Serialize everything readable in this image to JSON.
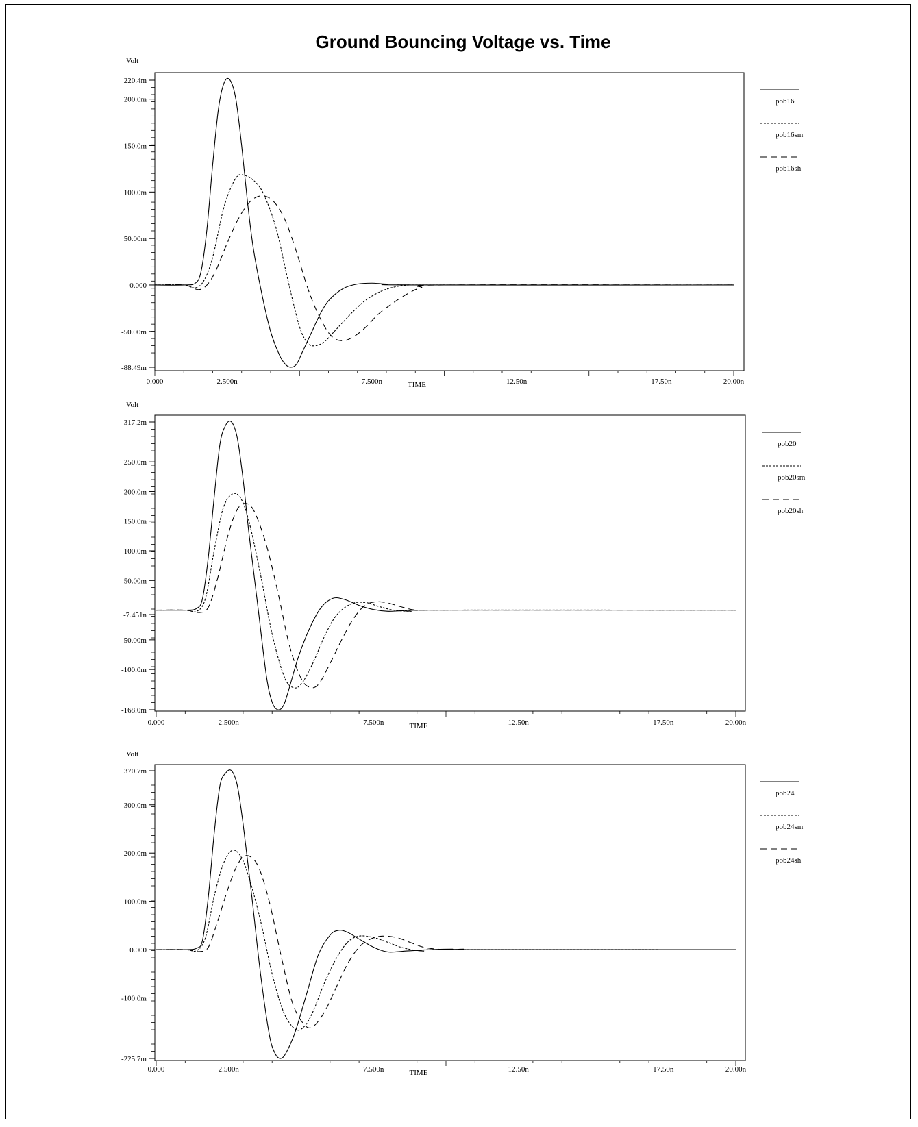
{
  "title": "Ground Bouncing Voltage vs. Time",
  "chart_data": [
    {
      "type": "line",
      "yunit": "Volt",
      "xlabel": "TIME",
      "xlim": [
        0,
        20
      ],
      "ylim": [
        -88.49,
        220.4
      ],
      "x_ticks": [
        "0.000",
        "2.500n",
        "7.500n",
        "12.50n",
        "17.50n",
        "20.00n"
      ],
      "y_ticks": [
        {
          "value": 220.4,
          "label": "220.4m"
        },
        {
          "value": 200,
          "label": "200.0m"
        },
        {
          "value": 150,
          "label": "150.0m"
        },
        {
          "value": 100,
          "label": "100.0m"
        },
        {
          "value": 50,
          "label": "50.00m"
        },
        {
          "value": 0,
          "label": "0.000"
        },
        {
          "value": -50,
          "label": "-50.00m"
        },
        {
          "value": -88.49,
          "label": "-88.49m"
        }
      ],
      "legend_position": "right",
      "series": [
        {
          "name": "pob16",
          "style": "solid",
          "x": [
            0,
            1.0,
            1.4,
            1.6,
            1.8,
            2.0,
            2.2,
            2.4,
            2.6,
            2.8,
            3.0,
            3.2,
            3.4,
            3.7,
            4.0,
            4.3,
            4.5,
            4.7,
            4.9,
            5.1,
            5.4,
            5.7,
            6.0,
            6.5,
            7.0,
            7.5,
            8.0,
            9.0,
            20.0
          ],
          "y": [
            0,
            0,
            2,
            15,
            60,
            130,
            190,
            218,
            220.4,
            200,
            150,
            90,
            40,
            -10,
            -50,
            -75,
            -85,
            -88.49,
            -85,
            -72,
            -52,
            -32,
            -17,
            -4,
            1,
            2,
            1,
            0,
            0
          ]
        },
        {
          "name": "pob16sm",
          "style": "dotted",
          "x": [
            0,
            1.0,
            1.4,
            1.7,
            2.0,
            2.4,
            2.8,
            3.1,
            3.5,
            3.8,
            4.2,
            4.6,
            5.0,
            5.3,
            5.6,
            5.9,
            6.2,
            6.5,
            6.9,
            7.3,
            7.8,
            8.3,
            8.8,
            9.3,
            20.0
          ],
          "y": [
            0,
            0,
            -3,
            5,
            30,
            85,
            115,
            118,
            110,
            95,
            60,
            5,
            -45,
            -63,
            -65,
            -60,
            -50,
            -40,
            -27,
            -16,
            -7,
            -2,
            0,
            0,
            0
          ]
        },
        {
          "name": "pob16sh",
          "style": "dashed",
          "x": [
            0,
            1.0,
            1.5,
            1.8,
            2.1,
            2.5,
            2.9,
            3.3,
            3.7,
            4.1,
            4.5,
            4.9,
            5.3,
            5.7,
            6.1,
            6.5,
            6.9,
            7.3,
            7.7,
            8.2,
            8.7,
            9.2,
            10.0,
            20.0
          ],
          "y": [
            0,
            0,
            -5,
            0,
            15,
            45,
            72,
            90,
            96,
            90,
            70,
            35,
            -5,
            -35,
            -55,
            -60,
            -55,
            -45,
            -32,
            -20,
            -10,
            -3,
            0,
            0
          ]
        }
      ]
    },
    {
      "type": "line",
      "yunit": "Volt",
      "xlabel": "TIME",
      "xlim": [
        0,
        20
      ],
      "ylim": [
        -168,
        317.2
      ],
      "x_ticks": [
        "0.000",
        "2.500n",
        "7.500n",
        "12.50n",
        "17.50n",
        "20.00n"
      ],
      "y_ticks": [
        {
          "value": 317.2,
          "label": "317.2m"
        },
        {
          "value": 250,
          "label": "250.0m"
        },
        {
          "value": 200,
          "label": "200.0m"
        },
        {
          "value": 150,
          "label": "150.0m"
        },
        {
          "value": 100,
          "label": "100.0m"
        },
        {
          "value": 50,
          "label": "50.00m"
        },
        {
          "value": -7.451,
          "label": "-7.451n"
        },
        {
          "value": -50,
          "label": "-50.00m"
        },
        {
          "value": -100,
          "label": "-100.0m"
        },
        {
          "value": -168,
          "label": "-168.0m"
        }
      ],
      "legend_position": "right",
      "series": [
        {
          "name": "pob20",
          "style": "solid",
          "x": [
            0,
            1.0,
            1.4,
            1.6,
            1.8,
            2.0,
            2.2,
            2.4,
            2.6,
            2.8,
            3.0,
            3.2,
            3.5,
            3.8,
            4.0,
            4.2,
            4.4,
            4.6,
            4.9,
            5.3,
            5.7,
            6.1,
            6.5,
            7.0,
            7.5,
            8.0,
            8.5,
            9.5,
            20.0
          ],
          "y": [
            0,
            0,
            3,
            20,
            90,
            190,
            280,
            312,
            317.2,
            290,
            220,
            130,
            10,
            -110,
            -155,
            -168,
            -160,
            -130,
            -80,
            -30,
            5,
            20,
            18,
            8,
            1,
            -2,
            -1,
            0,
            0
          ]
        },
        {
          "name": "pob20sm",
          "style": "dotted",
          "x": [
            0,
            1.0,
            1.4,
            1.7,
            2.0,
            2.3,
            2.6,
            2.9,
            3.2,
            3.6,
            4.0,
            4.4,
            4.7,
            5.0,
            5.4,
            5.8,
            6.2,
            6.7,
            7.2,
            7.7,
            8.2,
            8.8,
            9.5,
            20.0
          ],
          "y": [
            0,
            0,
            -2,
            20,
            100,
            170,
            195,
            190,
            150,
            60,
            -40,
            -110,
            -130,
            -125,
            -90,
            -45,
            -10,
            10,
            13,
            6,
            0,
            -2,
            0,
            0
          ]
        },
        {
          "name": "pob20sh",
          "style": "dashed",
          "x": [
            0,
            1.0,
            1.5,
            1.8,
            2.1,
            2.5,
            2.8,
            3.1,
            3.4,
            3.8,
            4.2,
            4.6,
            5.0,
            5.3,
            5.6,
            6.0,
            6.4,
            6.8,
            7.2,
            7.6,
            8.0,
            8.5,
            9.0,
            10.0,
            20.0
          ],
          "y": [
            0,
            0,
            -4,
            5,
            50,
            130,
            170,
            180,
            165,
            110,
            30,
            -60,
            -115,
            -130,
            -125,
            -90,
            -50,
            -15,
            8,
            14,
            12,
            5,
            0,
            0,
            0
          ]
        }
      ]
    },
    {
      "type": "line",
      "yunit": "Volt",
      "xlabel": "TIME",
      "xlim": [
        0,
        20
      ],
      "ylim": [
        -225.7,
        370.7
      ],
      "x_ticks": [
        "0.000",
        "2.500n",
        "7.500n",
        "12.50n",
        "17.50n",
        "20.00n"
      ],
      "y_ticks": [
        {
          "value": 370.7,
          "label": "370.7m"
        },
        {
          "value": 300,
          "label": "300.0m"
        },
        {
          "value": 200,
          "label": "200.0m"
        },
        {
          "value": 100,
          "label": "100.0m"
        },
        {
          "value": 0,
          "label": "0.000"
        },
        {
          "value": -100,
          "label": "-100.0m"
        },
        {
          "value": -225.7,
          "label": "-225.7m"
        }
      ],
      "legend_position": "right",
      "series": [
        {
          "name": "pob24",
          "style": "solid",
          "x": [
            0,
            1.0,
            1.4,
            1.6,
            1.8,
            2.0,
            2.2,
            2.4,
            2.6,
            2.8,
            3.0,
            3.3,
            3.6,
            3.9,
            4.1,
            4.3,
            4.5,
            4.8,
            5.2,
            5.6,
            6.0,
            6.3,
            6.6,
            7.0,
            7.5,
            8.0,
            8.6,
            9.5,
            10.2,
            11.0,
            20.0
          ],
          "y": [
            0,
            0,
            3,
            20,
            110,
            240,
            340,
            366,
            370.7,
            340,
            260,
            110,
            -50,
            -175,
            -215,
            -225.7,
            -212,
            -170,
            -90,
            -10,
            30,
            40,
            36,
            22,
            5,
            -5,
            -3,
            0,
            1,
            0,
            0
          ]
        },
        {
          "name": "pob24sm",
          "style": "dotted",
          "x": [
            0,
            1.0,
            1.4,
            1.7,
            2.0,
            2.3,
            2.6,
            2.9,
            3.2,
            3.6,
            4.0,
            4.4,
            4.8,
            5.1,
            5.4,
            5.8,
            6.2,
            6.6,
            7.0,
            7.5,
            8.0,
            8.5,
            9.2,
            10.0,
            20.0
          ],
          "y": [
            0,
            0,
            -2,
            25,
            110,
            175,
            205,
            195,
            150,
            60,
            -50,
            -130,
            -165,
            -160,
            -130,
            -70,
            -20,
            15,
            28,
            25,
            15,
            4,
            -3,
            0,
            0
          ]
        },
        {
          "name": "pob24sh",
          "style": "dashed",
          "x": [
            0,
            1.0,
            1.5,
            1.8,
            2.1,
            2.5,
            2.8,
            3.1,
            3.5,
            3.9,
            4.3,
            4.7,
            5.1,
            5.4,
            5.8,
            6.2,
            6.6,
            7.0,
            7.4,
            7.8,
            8.3,
            8.8,
            9.3,
            10.0,
            10.6,
            11.0,
            20.0
          ],
          "y": [
            0,
            0,
            -4,
            5,
            55,
            130,
            175,
            195,
            175,
            100,
            -10,
            -110,
            -155,
            -160,
            -130,
            -80,
            -30,
            5,
            22,
            28,
            25,
            14,
            4,
            0,
            1,
            0,
            0
          ]
        }
      ]
    }
  ]
}
